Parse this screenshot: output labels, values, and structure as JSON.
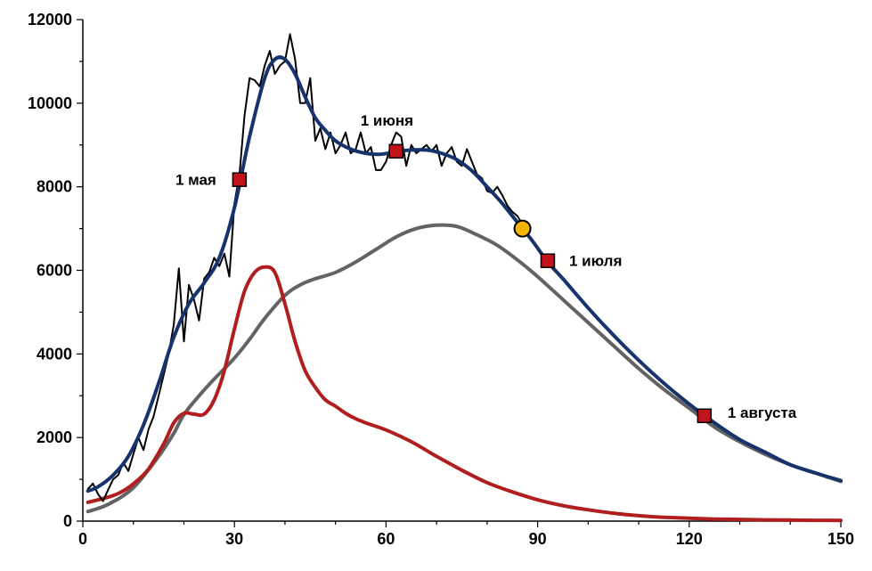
{
  "chart_data": {
    "type": "line",
    "title": "",
    "xlabel": "",
    "ylabel": "",
    "xlim": [
      0,
      150
    ],
    "ylim": [
      0,
      12000
    ],
    "x_ticks": [
      0,
      30,
      60,
      90,
      120,
      150
    ],
    "x_tick_labels": [
      "0",
      "30",
      "60",
      "90",
      "120",
      "150"
    ],
    "y_ticks": [
      0,
      2000,
      4000,
      6000,
      8000,
      10000,
      12000
    ],
    "y_tick_labels": [
      "0",
      "2000",
      "4000",
      "6000",
      "8000",
      "10000",
      "12000"
    ],
    "grid": false,
    "legend": "none",
    "series": [
      {
        "key": "daily",
        "color": "#000000",
        "x": [
          1,
          2,
          3,
          4,
          5,
          6,
          7,
          8,
          9,
          10,
          11,
          12,
          13,
          14,
          15,
          16,
          17,
          18,
          19,
          20,
          21,
          22,
          23,
          24,
          25,
          26,
          27,
          28,
          29,
          30,
          31,
          32,
          33,
          34,
          35,
          36,
          37,
          38,
          39,
          40,
          41,
          42,
          43,
          44,
          45,
          46,
          47,
          48,
          49,
          50,
          51,
          52,
          53,
          54,
          55,
          56,
          57,
          58,
          59,
          60,
          61,
          62,
          63,
          64,
          65,
          66,
          67,
          68,
          69,
          70,
          71,
          72,
          73,
          74,
          75,
          76,
          77,
          78,
          79,
          80,
          81,
          82,
          83,
          84,
          85,
          86,
          87
        ],
        "y": [
          770,
          900,
          650,
          480,
          750,
          1000,
          1100,
          1400,
          1200,
          1600,
          2000,
          1700,
          2200,
          2500,
          3000,
          3500,
          4000,
          4700,
          6050,
          4300,
          5650,
          5300,
          4800,
          5800,
          5950,
          6300,
          6100,
          6400,
          5850,
          7600,
          8300,
          9700,
          10600,
          10550,
          10400,
          10900,
          11250,
          10700,
          10900,
          11000,
          11650,
          11050,
          10000,
          10000,
          10600,
          9100,
          9400,
          8900,
          9300,
          8800,
          9000,
          9300,
          8800,
          8900,
          9300,
          8800,
          8950,
          8400,
          8400,
          8600,
          9000,
          9300,
          9200,
          8500,
          9000,
          8800,
          8900,
          9000,
          8850,
          9000,
          8500,
          8800,
          8950,
          8600,
          8500,
          8900,
          8600,
          8300,
          8200,
          7900,
          7850,
          8000,
          7800,
          7550,
          7400,
          7300,
          7100
        ]
      },
      {
        "key": "smooth",
        "color": "#16336b",
        "x": [
          1,
          3,
          6,
          9,
          12,
          15,
          18,
          21,
          24,
          27,
          30,
          33,
          36,
          38,
          40,
          42,
          44,
          46,
          48,
          50,
          53,
          56,
          59,
          62,
          65,
          68,
          71,
          74,
          77,
          80,
          83,
          86,
          89,
          92,
          95,
          100,
          105,
          110,
          115,
          120,
          125,
          130,
          135,
          140,
          145,
          150
        ],
        "y": [
          720,
          820,
          1100,
          1550,
          2300,
          3300,
          4400,
          5200,
          5700,
          6300,
          7500,
          9200,
          10600,
          11050,
          11050,
          10700,
          10150,
          9650,
          9350,
          9100,
          8900,
          8800,
          8780,
          8840,
          8880,
          8880,
          8800,
          8650,
          8380,
          8000,
          7600,
          7150,
          6700,
          6200,
          5800,
          5100,
          4450,
          3850,
          3300,
          2800,
          2350,
          1950,
          1650,
          1350,
          1150,
          970
        ]
      },
      {
        "key": "red",
        "color": "#b11e1e",
        "x": [
          1,
          4,
          7,
          10,
          13,
          16,
          18,
          20,
          22,
          24,
          26,
          28,
          30,
          32,
          34,
          36,
          38,
          40,
          42,
          44,
          46,
          48,
          50,
          52,
          54,
          56,
          60,
          65,
          70,
          75,
          80,
          85,
          90,
          95,
          100,
          105,
          110,
          115,
          120,
          125,
          130,
          135,
          140,
          145,
          150
        ],
        "y": [
          450,
          540,
          660,
          890,
          1250,
          1850,
          2350,
          2580,
          2560,
          2560,
          2900,
          3600,
          4600,
          5500,
          5950,
          6080,
          5950,
          5200,
          4300,
          3600,
          3200,
          2900,
          2750,
          2580,
          2450,
          2350,
          2180,
          1900,
          1550,
          1220,
          920,
          700,
          510,
          370,
          270,
          190,
          130,
          90,
          70,
          50,
          40,
          30,
          25,
          20,
          15
        ]
      },
      {
        "key": "gray",
        "color": "#636363",
        "x": [
          1,
          5,
          10,
          15,
          18,
          20,
          23,
          26,
          30,
          33,
          36,
          40,
          43,
          46,
          50,
          54,
          58,
          62,
          66,
          70,
          74,
          78,
          82,
          86,
          90,
          95,
          100,
          105,
          110,
          115,
          120,
          125,
          130,
          135,
          140,
          145,
          150
        ],
        "y": [
          230,
          400,
          800,
          1550,
          2100,
          2550,
          3000,
          3400,
          3900,
          4350,
          4850,
          5400,
          5650,
          5800,
          5950,
          6200,
          6500,
          6800,
          7000,
          7080,
          7050,
          6850,
          6600,
          6250,
          5850,
          5300,
          4750,
          4200,
          3650,
          3150,
          2700,
          2250,
          1900,
          1600,
          1350,
          1150,
          950
        ]
      }
    ],
    "markers": [
      {
        "label": "1 мая",
        "x": 31,
        "y": 8170,
        "shape": "square",
        "color": "#c0141a"
      },
      {
        "label": "1 июня",
        "x": 62,
        "y": 8850,
        "shape": "square",
        "color": "#c0141a"
      },
      {
        "label": "1 июля",
        "x": 92,
        "y": 6230,
        "shape": "square",
        "color": "#c0141a"
      },
      {
        "label": "1 августа",
        "x": 123,
        "y": 2520,
        "shape": "square",
        "color": "#c0141a"
      },
      {
        "label": "",
        "x": 87,
        "y": 7000,
        "shape": "circle",
        "color": "#f5b400"
      }
    ]
  }
}
